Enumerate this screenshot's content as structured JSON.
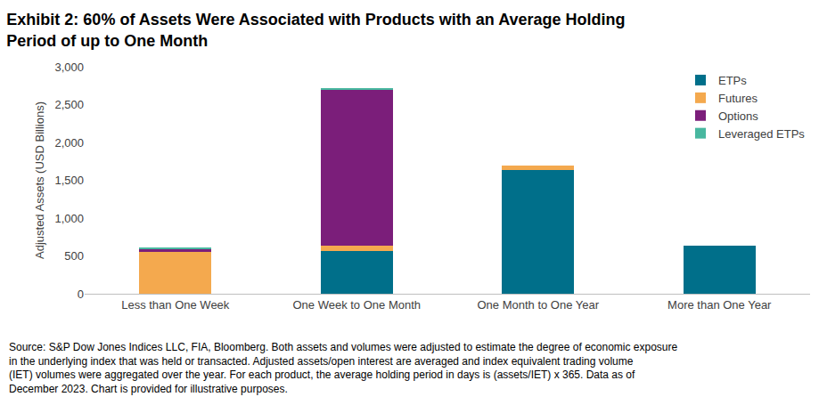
{
  "chart_data": {
    "type": "bar",
    "stacked": true,
    "title": "Exhibit 2: 60% of Assets Were Associated with Products with an Average Holding Period of up to One Month",
    "ylabel": "Adjusted Assets (USD Billions)",
    "categories": [
      "Less than One Week",
      "One Week to One Month",
      "One Month to One Year",
      "More than One Year"
    ],
    "series": [
      {
        "name": "ETPs",
        "color": "#006f8a",
        "values": [
          0,
          570,
          1630,
          640
        ]
      },
      {
        "name": "Futures",
        "color": "#f4a94e",
        "values": [
          555,
          70,
          60,
          0
        ]
      },
      {
        "name": "Options",
        "color": "#7b1e7a",
        "values": [
          35,
          2050,
          0,
          0
        ]
      },
      {
        "name": "Leveraged ETPs",
        "color": "#48b79f",
        "values": [
          25,
          25,
          0,
          0
        ]
      }
    ],
    "ylim": [
      0,
      3000
    ],
    "yticks": [
      0,
      500,
      {
        "value": 1000,
        "label": "1,000"
      },
      {
        "value": 1500,
        "label": "1,500"
      },
      {
        "value": 2000,
        "label": "2,000"
      },
      {
        "value": 2500,
        "label": "2,500"
      },
      {
        "value": 3000,
        "label": "3,000"
      }
    ],
    "grid": false,
    "legend": "upper right",
    "annotations": [
      "Source: S&P Dow Jones Indices LLC, FIA, Bloomberg. Both assets and volumes were adjusted to estimate the degree of economic exposure in the underlying index that was held or transacted. Adjusted assets/open interest are averaged and index equivalent trading volume (IET) volumes were aggregated over the year. For each product, the average holding period in days is (assets/IET) x 365. Data as of December 2023. Chart is provided for illustrative purposes."
    ]
  }
}
